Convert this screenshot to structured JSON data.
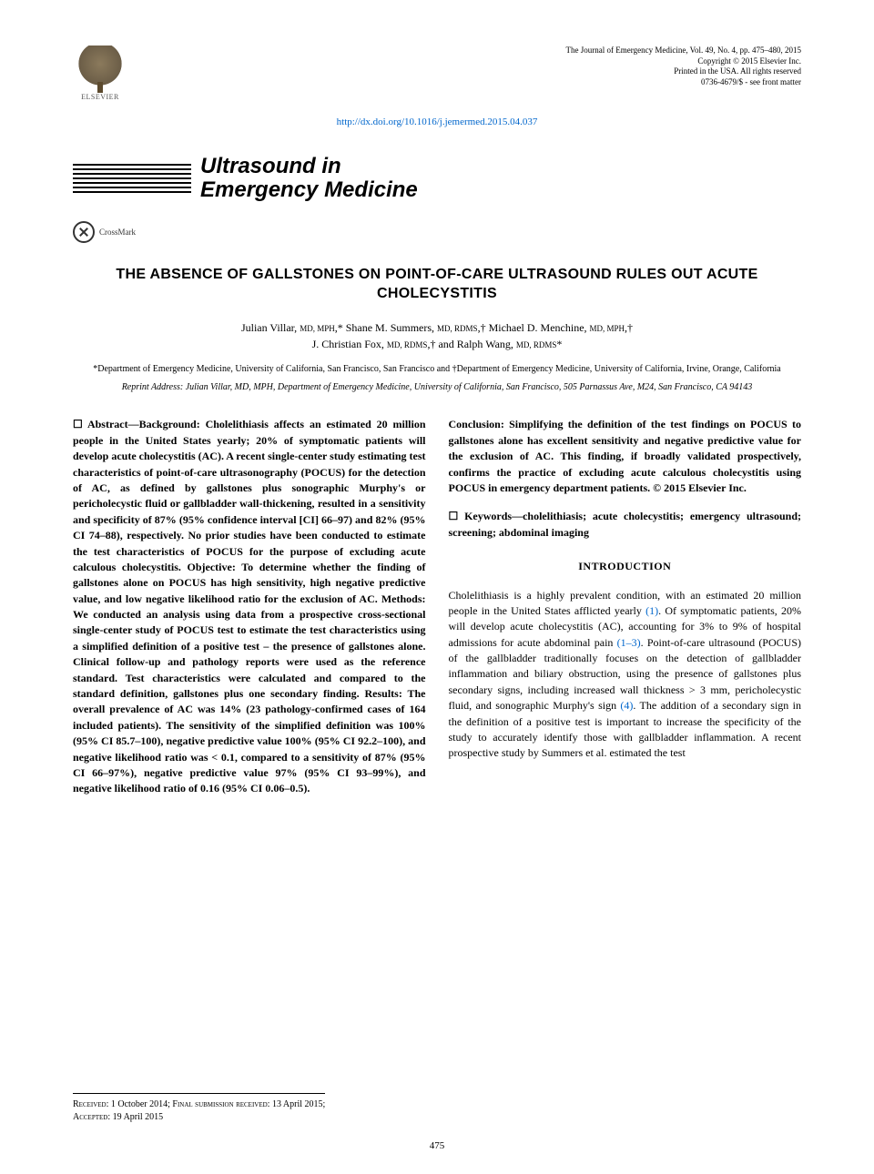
{
  "journal_meta": {
    "line1": "The Journal of Emergency Medicine, Vol. 49, No. 4, pp. 475–480, 2015",
    "line2": "Copyright © 2015 Elsevier Inc.",
    "line3": "Printed in the USA. All rights reserved",
    "line4": "0736-4679/$ - see front matter"
  },
  "doi": "http://dx.doi.org/10.1016/j.jemermed.2015.04.037",
  "publisher": "ELSEVIER",
  "section_banner": "Ultrasound in Emergency Medicine",
  "crossmark": "CrossMark",
  "title": "THE ABSENCE OF GALLSTONES ON POINT-OF-CARE ULTRASOUND RULES OUT ACUTE CHOLECYSTITIS",
  "authors_line1_parts": {
    "a1": "Julian Villar, ",
    "a1cred": "MD, MPH",
    "a1sym": ",* ",
    "a2": "Shane M. Summers, ",
    "a2cred": "MD, RDMS",
    "a2sym": ",† ",
    "a3": "Michael D. Menchine, ",
    "a3cred": "MD, MPH",
    "a3sym": ",†"
  },
  "authors_line2_parts": {
    "a4": "J. Christian Fox, ",
    "a4cred": "MD, RDMS",
    "a4sym": ",† and ",
    "a5": "Ralph Wang, ",
    "a5cred": "MD, RDMS",
    "a5sym": "*"
  },
  "affiliations": "*Department of Emergency Medicine, University of California, San Francisco, San Francisco and †Department of Emergency Medicine, University of California, Irvine, Orange, California",
  "reprint_parts": {
    "label": "Reprint Address: ",
    "text": "Julian Villar, MD, MPH, Department of Emergency Medicine, University of California, San Francisco, 505 Parnassus Ave, M24, San Francisco, CA 94143"
  },
  "abstract_left": "☐ Abstract—Background: Cholelithiasis affects an estimated 20 million people in the United States yearly; 20% of symptomatic patients will develop acute cholecystitis (AC). A recent single-center study estimating test characteristics of point-of-care ultrasonography (POCUS) for the detection of AC, as defined by gallstones plus sonographic Murphy's or pericholecystic fluid or gallbladder wall-thickening, resulted in a sensitivity and specificity of 87% (95% confidence interval [CI] 66–97) and 82% (95% CI 74–88), respectively. No prior studies have been conducted to estimate the test characteristics of POCUS for the purpose of excluding acute calculous cholecystitis. Objective: To determine whether the finding of gallstones alone on POCUS has high sensitivity, high negative predictive value, and low negative likelihood ratio for the exclusion of AC. Methods: We conducted an analysis using data from a prospective cross-sectional single-center study of POCUS test to estimate the test characteristics using a simplified definition of a positive test – the presence of gallstones alone. Clinical follow-up and pathology reports were used as the reference standard. Test characteristics were calculated and compared to the standard definition, gallstones plus one secondary finding. Results: The overall prevalence of AC was 14% (23 pathology-confirmed cases of 164 included patients). The sensitivity of the simplified definition was 100% (95% CI 85.7–100), negative predictive value 100% (95% CI 92.2–100), and negative likelihood ratio was < 0.1, compared to a sensitivity of 87% (95% CI 66–97%), negative predictive value 97% (95% CI 93–99%), and negative likelihood ratio of 0.16 (95% CI 0.06–0.5).",
  "abstract_right_conclusion": "Conclusion: Simplifying the definition of the test findings on POCUS to gallstones alone has excellent sensitivity and negative predictive value for the exclusion of AC. This finding, if broadly validated prospectively, confirms the practice of excluding acute calculous cholecystitis using POCUS in emergency department patients. © 2015 Elsevier Inc.",
  "keywords": "☐ Keywords—cholelithiasis; acute cholecystitis; emergency ultrasound; screening; abdominal imaging",
  "intro_heading": "INTRODUCTION",
  "intro_body_parts": {
    "p1a": "Cholelithiasis is a highly prevalent condition, with an estimated 20 million people in the United States afflicted yearly ",
    "r1": "(1)",
    "p1b": ". Of symptomatic patients, 20% will develop acute cholecystitis (AC), accounting for 3% to 9% of hospital admissions for acute abdominal pain ",
    "r2": "(1–3)",
    "p1c": ". Point-of-care ultrasound (POCUS) of the gallbladder traditionally focuses on the detection of gallbladder inflammation and biliary obstruction, using the presence of gallstones plus secondary signs, including increased wall thickness > 3 mm, pericholecystic fluid, and sonographic Murphy's sign ",
    "r3": "(4)",
    "p1d": ". The addition of a secondary sign in the definition of a positive test is important to increase the specificity of the study to accurately identify those with gallbladder inflammation. A recent prospective study by Summers et al. estimated the test"
  },
  "footer": {
    "received_label": "Received: ",
    "received": "1 October 2014; ",
    "final_label": "Final submission received: ",
    "final": "13 April 2015;",
    "accepted_label": "Accepted: ",
    "accepted": "19 April 2015"
  },
  "page_number": "475",
  "colors": {
    "link": "#0066cc",
    "text": "#000000",
    "background": "#ffffff"
  },
  "typography": {
    "body_fontsize": 12,
    "title_fontsize": 16,
    "banner_fontsize": 24,
    "meta_fontsize": 9,
    "affil_fontsize": 10
  }
}
